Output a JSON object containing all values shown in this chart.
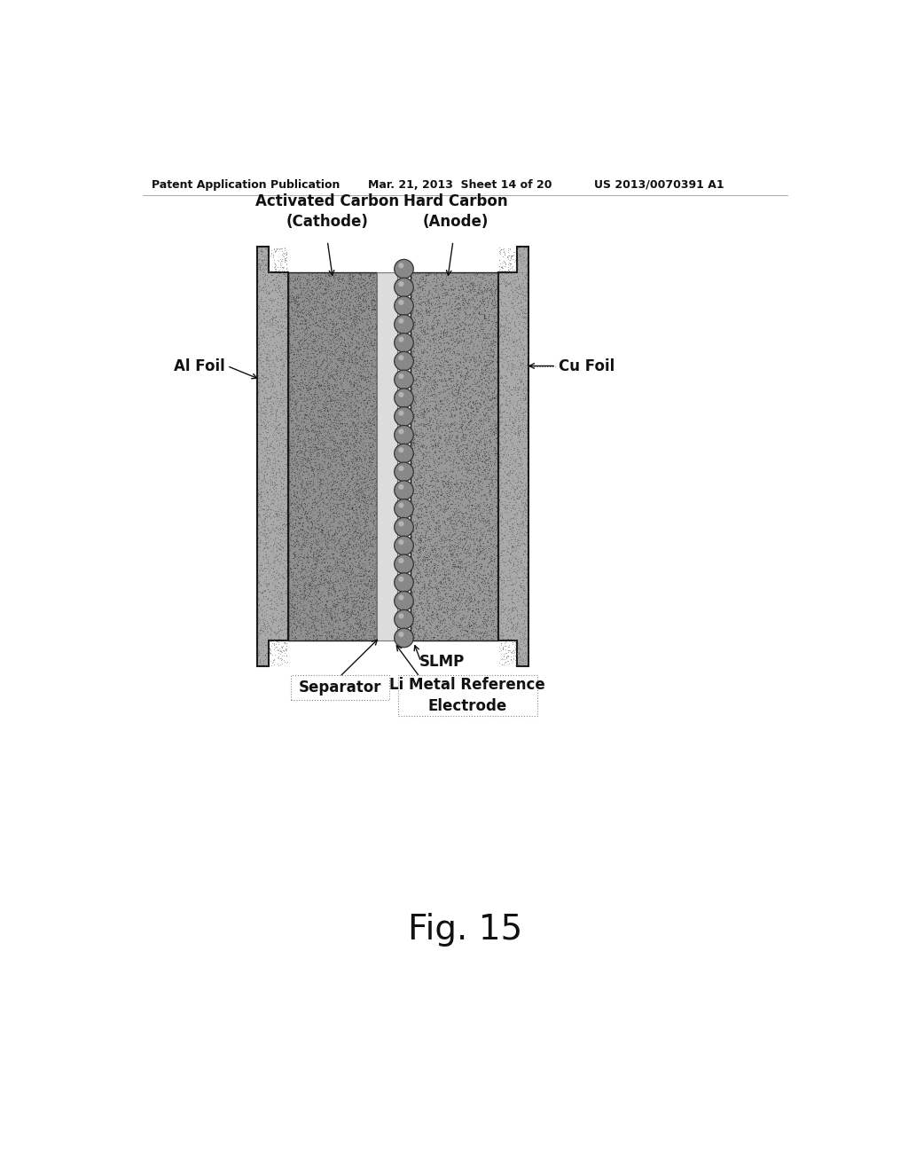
{
  "header_left": "Patent Application Publication",
  "header_mid": "Mar. 21, 2013  Sheet 14 of 20",
  "header_right": "US 2013/0070391 A1",
  "fig_label": "Fig. 15",
  "label_activated_carbon": "Activated Carbon\n(Cathode)",
  "label_hard_carbon": "Hard Carbon\n(Anode)",
  "label_al_foil": "Al Foil",
  "label_cu_foil": "Cu Foil",
  "label_separator": "Separator",
  "label_slmp": "SLMP",
  "label_li_metal": "Li Metal Reference\nElectrode",
  "bg_color": "#ffffff",
  "c_foil": "#aaaaaa",
  "c_cathode": "#909090",
  "c_anode": "#999999",
  "c_sep": "#d8d8d8",
  "c_ball": "#888888",
  "c_edge": "#1a1a1a",
  "stipple_color": "#444444",
  "header_fontsize": 9,
  "label_fontsize": 12,
  "fig_fontsize": 28
}
